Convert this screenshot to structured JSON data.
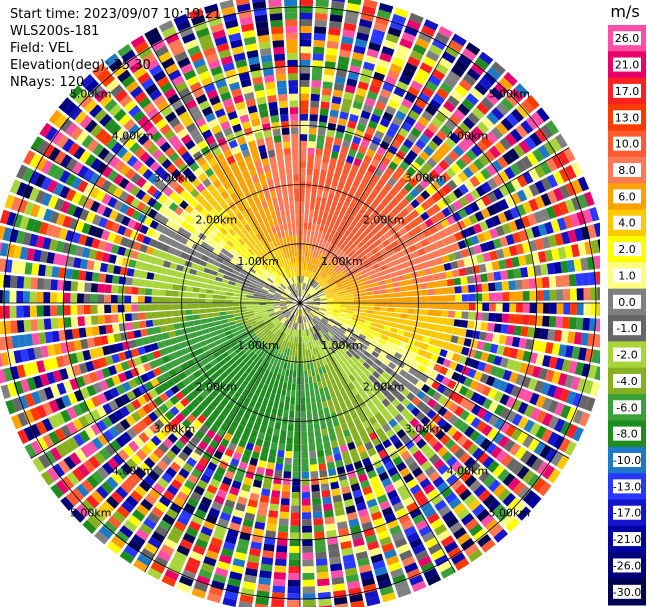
{
  "header": {
    "start_time": "Start time: 2023/09/07 10:19:21",
    "instrument": "WLS200s-181",
    "field": "Field: VEL",
    "elevation": "Elevation(deg): 35.30",
    "nrays": "NRays: 120"
  },
  "colorbar": {
    "unit": "m/s",
    "ticks": [
      "26.0",
      "21.0",
      "17.0",
      "13.0",
      "10.0",
      "8.0",
      "6.0",
      "4.0",
      "2.0",
      "1.0",
      "0.0",
      "-1.0",
      "-2.0",
      "-4.0",
      "-6.0",
      "-8.0",
      "-10.0",
      "-13.0",
      "-17.0",
      "-21.0",
      "-26.0",
      "-30.0"
    ],
    "colors": [
      "#ff4fa9",
      "#e8006a",
      "#ff2020",
      "#ff3a00",
      "#ff5a30",
      "#ff7a55",
      "#ffa200",
      "#ffc800",
      "#ffff00",
      "#ffff80",
      "#808080",
      "#666666",
      "#a8d63a",
      "#86b020",
      "#3aa03a",
      "#1e8c1e",
      "#1e78c8",
      "#2838ff",
      "#1414c8",
      "#0000a0",
      "#00007a",
      "#000050"
    ]
  },
  "chart_data": {
    "type": "ppi",
    "field": "VEL",
    "units": "m/s",
    "nrays": 120,
    "elevation_deg": 35.3,
    "range_rings_km": [
      1.0,
      2.0,
      3.0,
      4.0,
      5.0
    ],
    "ring_labels": [
      "1.00km",
      "2.00km",
      "3.00km",
      "4.00km",
      "5.00km"
    ],
    "clean_region_max_range_km": 2.55,
    "description_of_pattern": "positive velocities (orange/red) to the north and east, negative (green/blue) to the south and west, noisy random values beyond ~2.6 km"
  }
}
